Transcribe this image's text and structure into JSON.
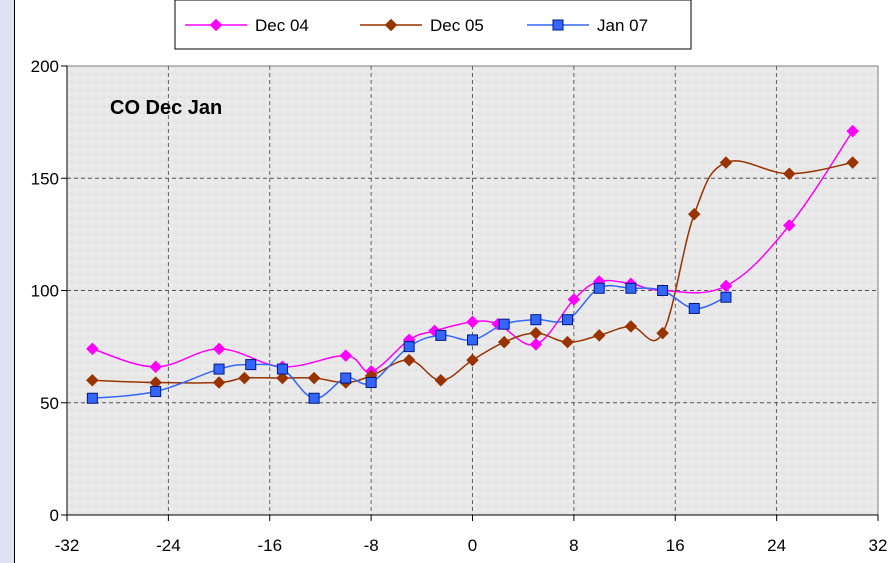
{
  "chart_data": {
    "type": "line",
    "title": "CO Dec Jan",
    "xlabel": "",
    "ylabel": "",
    "xlim": [
      -32,
      32
    ],
    "ylim": [
      0,
      200
    ],
    "x_ticks": [
      "-32",
      "-24",
      "-16",
      "-8",
      "0",
      "8",
      "16",
      "24",
      "32"
    ],
    "y_ticks": [
      "0",
      "50",
      "100",
      "150",
      "200"
    ],
    "grid": true,
    "legend_position": "top",
    "series": [
      {
        "name": "Dec 04",
        "color": "#ff00ff",
        "marker": "diamond",
        "x": [
          -30,
          -25,
          -20,
          -15,
          -10,
          -8,
          -5,
          -3,
          0,
          2,
          5,
          8,
          10,
          12.5,
          15,
          20,
          25,
          30
        ],
        "y": [
          74,
          66,
          74,
          66,
          71,
          64,
          78,
          82,
          86,
          85,
          76,
          96,
          104,
          103,
          100,
          102,
          129,
          171
        ]
      },
      {
        "name": "Dec 05",
        "color": "#993300",
        "marker": "diamond",
        "x": [
          -30,
          -25,
          -20,
          -18,
          -15,
          -12.5,
          -10,
          -8,
          -5,
          -2.5,
          0,
          2.5,
          5,
          7.5,
          10,
          12.5,
          15,
          17.5,
          20,
          25,
          30
        ],
        "y": [
          60,
          59,
          59,
          61,
          61,
          61,
          59,
          62,
          69,
          60,
          69,
          77,
          81,
          77,
          80,
          84,
          81,
          134,
          157,
          152,
          157
        ]
      },
      {
        "name": "Jan 07",
        "color": "#3366ff",
        "marker": "square",
        "x": [
          -30,
          -25,
          -20,
          -17.5,
          -15,
          -12.5,
          -10,
          -8,
          -5,
          -2.5,
          0,
          2.5,
          5,
          7.5,
          10,
          12.5,
          15,
          17.5,
          20
        ],
        "y": [
          52,
          55,
          65,
          67,
          65,
          52,
          61,
          59,
          75,
          80,
          78,
          85,
          87,
          87,
          101,
          101,
          100,
          92,
          97
        ]
      }
    ]
  }
}
